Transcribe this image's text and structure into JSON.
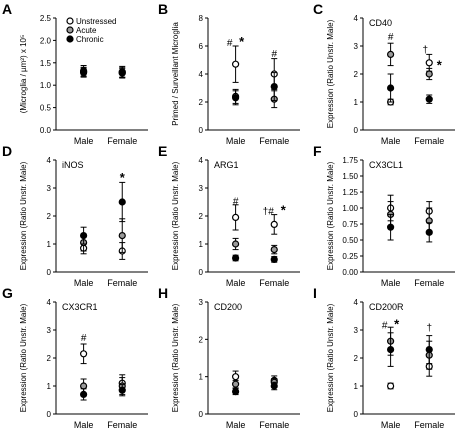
{
  "colors": {
    "unstressed": "#ffffff",
    "acute": "#9a9a9a",
    "chronic": "#000000",
    "stroke": "#000000"
  },
  "legend": [
    "Unstressed",
    "Acute",
    "Chronic"
  ],
  "chart_data": [
    {
      "id": "A",
      "type": "scatter",
      "title": "",
      "ylabel": "(Microglia / µm²) x 10⁵",
      "categories": [
        "Male",
        "Female"
      ],
      "ylim": [
        0,
        2.5
      ],
      "yticks": [
        0,
        0.5,
        1,
        1.5,
        2,
        2.5
      ],
      "yticklabels": [
        "0.0",
        "0.5",
        "1.0",
        "1.5",
        "2.0",
        "2.5"
      ],
      "series": [
        {
          "name": "Unstressed",
          "values": [
            1.32,
            1.3
          ],
          "err": [
            0.12,
            0.12
          ]
        },
        {
          "name": "Acute",
          "values": [
            1.3,
            1.28
          ],
          "err": [
            0.1,
            0.12
          ]
        },
        {
          "name": "Chronic",
          "values": [
            1.28,
            1.27
          ],
          "err": [
            0.1,
            0.1
          ]
        }
      ],
      "annotations": []
    },
    {
      "id": "B",
      "type": "scatter",
      "title": "",
      "ylabel": "Primed / Surveillant Microglia",
      "categories": [
        "Male",
        "Female"
      ],
      "ylim": [
        0,
        8
      ],
      "yticks": [
        0,
        2,
        4,
        6,
        8
      ],
      "yticklabels": [
        "0",
        "2",
        "4",
        "6",
        "8"
      ],
      "series": [
        {
          "name": "Unstressed",
          "values": [
            4.7,
            4.0
          ],
          "err": [
            1.3,
            1.1
          ]
        },
        {
          "name": "Acute",
          "values": [
            2.4,
            2.2
          ],
          "err": [
            0.5,
            0.6
          ]
        },
        {
          "name": "Chronic",
          "values": [
            2.3,
            3.1
          ],
          "err": [
            0.5,
            1.0
          ]
        }
      ],
      "annotations": [
        {
          "cat": 0,
          "text": "#",
          "y": 6.3,
          "dx": -6
        },
        {
          "cat": 0,
          "text": "*",
          "y": 6.3,
          "dx": 6,
          "big": true
        },
        {
          "cat": 1,
          "text": "#",
          "y": 5.5,
          "dx": 0
        }
      ]
    },
    {
      "id": "C",
      "type": "scatter",
      "title": "CD40",
      "ylabel": "Expression (Ratio Unstr. Male)",
      "categories": [
        "Male",
        "Female"
      ],
      "ylim": [
        0,
        4
      ],
      "yticks": [
        0,
        1,
        2,
        3,
        4
      ],
      "yticklabels": [
        "0",
        "1",
        "2",
        "3",
        "4"
      ],
      "series": [
        {
          "name": "Unstressed",
          "values": [
            1.0,
            2.4
          ],
          "err": [
            0.1,
            0.3
          ]
        },
        {
          "name": "Acute",
          "values": [
            2.7,
            2.0
          ],
          "err": [
            0.4,
            0.2
          ]
        },
        {
          "name": "Chronic",
          "values": [
            1.5,
            1.1
          ],
          "err": [
            0.5,
            0.15
          ]
        }
      ],
      "annotations": [
        {
          "cat": 0,
          "text": "#",
          "y": 3.35,
          "dx": 0
        },
        {
          "cat": 1,
          "text": "†",
          "y": 2.9,
          "dx": -4
        },
        {
          "cat": 1,
          "text": "*",
          "y": 2.3,
          "dx": 10,
          "big": true
        }
      ]
    },
    {
      "id": "D",
      "type": "scatter",
      "title": "iNOS",
      "ylabel": "Expression (Ratio Unstr. Male)",
      "categories": [
        "Male",
        "Female"
      ],
      "ylim": [
        0,
        4
      ],
      "yticks": [
        0,
        1,
        2,
        3,
        4
      ],
      "yticklabels": [
        "0",
        "1",
        "2",
        "3",
        "4"
      ],
      "series": [
        {
          "name": "Unstressed",
          "values": [
            0.85,
            0.75
          ],
          "err": [
            0.2,
            0.3
          ]
        },
        {
          "name": "Acute",
          "values": [
            1.05,
            1.3
          ],
          "err": [
            0.3,
            0.6
          ]
        },
        {
          "name": "Chronic",
          "values": [
            1.3,
            2.5
          ],
          "err": [
            0.3,
            0.7
          ]
        }
      ],
      "annotations": [
        {
          "cat": 1,
          "text": "*",
          "y": 3.35,
          "dx": 0,
          "big": true
        }
      ]
    },
    {
      "id": "E",
      "type": "scatter",
      "title": "ARG1",
      "ylabel": "Expression (Ratio Unstr. Male)",
      "categories": [
        "Male",
        "Female"
      ],
      "ylim": [
        0,
        4
      ],
      "yticks": [
        0,
        1,
        2,
        3,
        4
      ],
      "yticklabels": [
        "0",
        "1",
        "2",
        "3",
        "4"
      ],
      "series": [
        {
          "name": "Unstressed",
          "values": [
            1.95,
            1.7
          ],
          "err": [
            0.45,
            0.35
          ]
        },
        {
          "name": "Acute",
          "values": [
            1.0,
            0.8
          ],
          "err": [
            0.2,
            0.15
          ]
        },
        {
          "name": "Chronic",
          "values": [
            0.5,
            0.45
          ],
          "err": [
            0.1,
            0.1
          ]
        }
      ],
      "annotations": [
        {
          "cat": 0,
          "text": "#",
          "y": 2.55,
          "dx": 0
        },
        {
          "cat": 1,
          "text": "†#",
          "y": 2.2,
          "dx": -6
        },
        {
          "cat": 1,
          "text": "*",
          "y": 2.2,
          "dx": 9,
          "big": true
        }
      ]
    },
    {
      "id": "F",
      "type": "scatter",
      "title": "CX3CL1",
      "ylabel": "Expression (Ratio Unstr. Male)",
      "categories": [
        "Male",
        "Female"
      ],
      "ylim": [
        0,
        1.75
      ],
      "yticks": [
        0,
        0.25,
        0.5,
        0.75,
        1,
        1.25,
        1.5,
        1.75
      ],
      "yticklabels": [
        "0.00",
        "0.25",
        "0.50",
        "0.75",
        "1.00",
        "1.25",
        "1.50",
        "1.75"
      ],
      "series": [
        {
          "name": "Unstressed",
          "values": [
            1.0,
            0.95
          ],
          "err": [
            0.2,
            0.15
          ]
        },
        {
          "name": "Acute",
          "values": [
            0.9,
            0.8
          ],
          "err": [
            0.2,
            0.2
          ]
        },
        {
          "name": "Chronic",
          "values": [
            0.7,
            0.62
          ],
          "err": [
            0.2,
            0.15
          ]
        }
      ],
      "annotations": []
    },
    {
      "id": "G",
      "type": "scatter",
      "title": "CX3CR1",
      "ylabel": "Expression (Ratio Unstr. Male)",
      "categories": [
        "Male",
        "Female"
      ],
      "ylim": [
        0,
        4
      ],
      "yticks": [
        0,
        1,
        2,
        3,
        4
      ],
      "yticklabels": [
        "0",
        "1",
        "2",
        "3",
        "4"
      ],
      "series": [
        {
          "name": "Unstressed",
          "values": [
            2.15,
            1.1
          ],
          "err": [
            0.35,
            0.3
          ]
        },
        {
          "name": "Acute",
          "values": [
            1.0,
            1.0
          ],
          "err": [
            0.25,
            0.3
          ]
        },
        {
          "name": "Chronic",
          "values": [
            0.7,
            0.85
          ],
          "err": [
            0.2,
            0.2
          ]
        }
      ],
      "annotations": [
        {
          "cat": 0,
          "text": "#",
          "y": 2.75,
          "dx": 0
        }
      ]
    },
    {
      "id": "H",
      "type": "scatter",
      "title": "CD200",
      "ylabel": "Expression (Ratio Unstr. Male)",
      "categories": [
        "Male",
        "Female"
      ],
      "ylim": [
        0,
        3
      ],
      "yticks": [
        0,
        1,
        2,
        3
      ],
      "yticklabels": [
        "0",
        "1",
        "2",
        "3"
      ],
      "series": [
        {
          "name": "Unstressed",
          "values": [
            1.0,
            0.9
          ],
          "err": [
            0.15,
            0.12
          ]
        },
        {
          "name": "Acute",
          "values": [
            0.8,
            0.85
          ],
          "err": [
            0.1,
            0.1
          ]
        },
        {
          "name": "Chronic",
          "values": [
            0.6,
            0.75
          ],
          "err": [
            0.08,
            0.1
          ]
        }
      ],
      "annotations": []
    },
    {
      "id": "I",
      "type": "scatter",
      "title": "CD200R",
      "ylabel": "Expression (Ratio Unstr. Male)",
      "categories": [
        "Male",
        "Female"
      ],
      "ylim": [
        0,
        4
      ],
      "yticks": [
        0,
        1,
        2,
        3,
        4
      ],
      "yticklabels": [
        "0",
        "1",
        "2",
        "3",
        "4"
      ],
      "series": [
        {
          "name": "Unstressed",
          "values": [
            1.0,
            1.7
          ],
          "err": [
            0.1,
            0.35
          ]
        },
        {
          "name": "Acute",
          "values": [
            2.6,
            2.1
          ],
          "err": [
            0.5,
            0.5
          ]
        },
        {
          "name": "Chronic",
          "values": [
            2.3,
            2.3
          ],
          "err": [
            0.6,
            0.5
          ]
        }
      ],
      "annotations": [
        {
          "cat": 0,
          "text": "#",
          "y": 3.2,
          "dx": -6
        },
        {
          "cat": 0,
          "text": "*",
          "y": 3.2,
          "dx": 6,
          "big": true
        },
        {
          "cat": 1,
          "text": "†",
          "y": 3.1,
          "dx": 0
        }
      ]
    }
  ]
}
